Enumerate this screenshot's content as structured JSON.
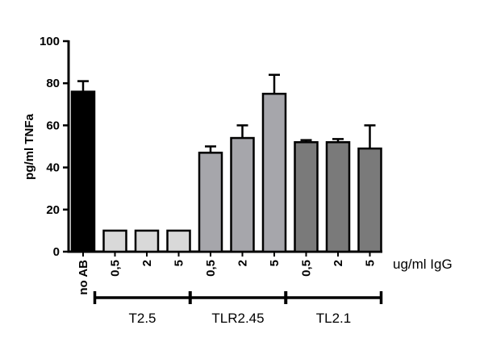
{
  "chart_data": {
    "type": "bar",
    "title": "",
    "ylabel": "pg/ml TNFa",
    "x_unit_label": "ug/ml IgG",
    "ylim": [
      0,
      100
    ],
    "yticks": [
      0,
      20,
      40,
      60,
      80,
      100
    ],
    "categories": [
      "no AB",
      "0,5",
      "2",
      "5",
      "0,5",
      "2",
      "5",
      "0,5",
      "2",
      "5"
    ],
    "values": [
      76,
      10,
      10,
      10,
      47,
      54,
      75,
      52,
      52,
      49
    ],
    "errors": [
      5,
      0,
      0,
      0,
      3,
      6,
      9,
      1,
      1.5,
      11
    ],
    "bar_colors": [
      "#000000",
      "#d9d9d9",
      "#d9d9d9",
      "#d9d9d9",
      "#a6a6ab",
      "#a6a6ab",
      "#a6a6ab",
      "#7a7a7a",
      "#7a7a7a",
      "#7a7a7a"
    ],
    "groups": [
      {
        "label": "T2.5",
        "from": 1,
        "to": 3
      },
      {
        "label": "TLR2.45",
        "from": 4,
        "to": 6
      },
      {
        "label": "TL2.1",
        "from": 7,
        "to": 9
      }
    ]
  }
}
